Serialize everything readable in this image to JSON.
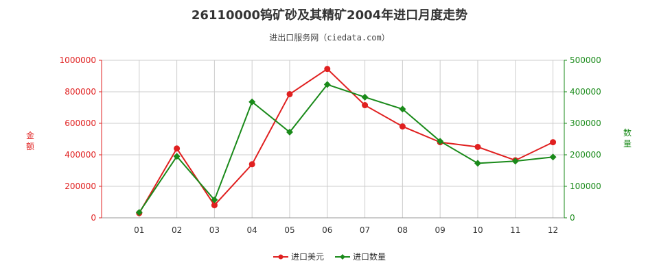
{
  "chart_data": {
    "type": "line",
    "title": "26110000钨矿砂及其精矿2004年进口月度走势",
    "subtitle": "进出口服务网（ciedata.com）",
    "categories": [
      "01",
      "02",
      "03",
      "04",
      "05",
      "06",
      "07",
      "08",
      "09",
      "10",
      "11",
      "12"
    ],
    "left_axis": {
      "label": "金额",
      "ylim": [
        0,
        1000000
      ],
      "ticks": [
        "0",
        "200000",
        "400000",
        "600000",
        "800000",
        "1000000"
      ]
    },
    "right_axis": {
      "label": "数量",
      "ylim": [
        0,
        500000
      ],
      "ticks": [
        "0",
        "100000",
        "200000",
        "300000",
        "400000",
        "500000"
      ]
    },
    "series": [
      {
        "name": "进口美元",
        "axis": "left",
        "color": "#e02020",
        "values": [
          30000,
          440000,
          80000,
          340000,
          785000,
          945000,
          715000,
          580000,
          480000,
          450000,
          365000,
          480000
        ]
      },
      {
        "name": "进口数量",
        "axis": "right",
        "color": "#1a8a1a",
        "values": [
          17000,
          195000,
          57000,
          368000,
          272000,
          423000,
          383000,
          345000,
          243000,
          173000,
          180000,
          193000
        ]
      }
    ],
    "grid": true,
    "legend_position": "bottom-center"
  }
}
